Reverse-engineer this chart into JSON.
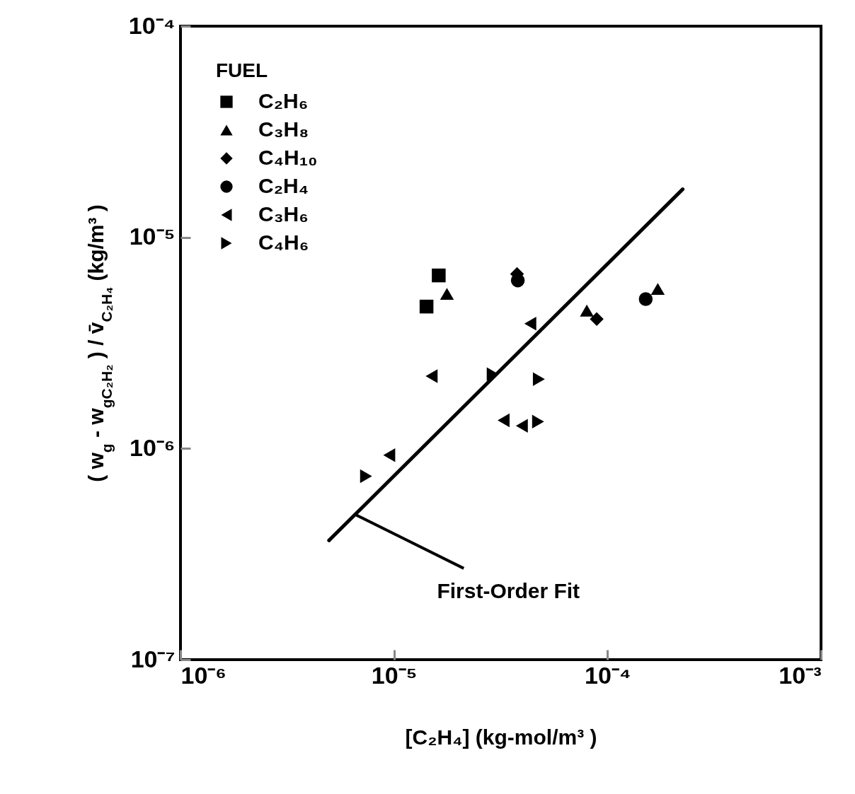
{
  "chart_data": {
    "type": "scatter",
    "xlabel": "[C₂H₄]  (kg-mol/m³ )",
    "ylabel": "( w$_{g}$ - w$_{gC₂H₂}$ ) / v̄$_{C₂H₄}$   (kg/m³ )",
    "legend_title": "FUEL",
    "legend": "top left",
    "log": "xy",
    "grid": false,
    "xlim": [
      1e-06,
      0.001
    ],
    "ylim": [
      1e-07,
      0.0001
    ],
    "xticks": [
      {
        "value": 1e-06,
        "label": "10⁻⁶"
      },
      {
        "value": 1e-05,
        "label": "10⁻⁵"
      },
      {
        "value": 0.0001,
        "label": "10⁻⁴"
      },
      {
        "value": 0.001,
        "label": "10⁻³"
      }
    ],
    "yticks": [
      {
        "value": 1e-07,
        "label": "10⁻⁷"
      },
      {
        "value": 1e-06,
        "label": "10⁻⁶"
      },
      {
        "value": 1e-05,
        "label": "10⁻⁵"
      },
      {
        "value": 0.0001,
        "label": "10⁻⁴"
      }
    ],
    "series": [
      {
        "name": "C₂H₆",
        "color": "#000000",
        "marker": "square",
        "x": [
          1.62e-05,
          1.42e-05
        ],
        "values": [
          6.6e-06,
          4.7e-06
        ]
      },
      {
        "name": "C₃H₈",
        "color": "#000000",
        "marker": "triangle",
        "x": [
          1.77e-05,
          8e-05,
          0.000172
        ],
        "values": [
          5.4e-06,
          4.5e-06,
          5.7e-06
        ]
      },
      {
        "name": "C₄H₁₀",
        "color": "#000000",
        "marker": "diamond",
        "x": [
          3.77e-05,
          8.9e-05
        ],
        "values": [
          6.7e-06,
          4.1e-06
        ]
      },
      {
        "name": "C₂H₄",
        "color": "#000000",
        "marker": "circle",
        "x": [
          3.8e-05,
          0.000151
        ],
        "values": [
          6.25e-06,
          5.1e-06
        ]
      },
      {
        "name": "C₃H₆",
        "color": "#000000",
        "marker": "triangle-left",
        "x": [
          4.35e-05,
          1.5e-05,
          3.26e-05,
          3.97e-05,
          9.5e-06
        ],
        "values": [
          3.9e-06,
          2.2e-06,
          1.36e-06,
          1.28e-06,
          9.3e-07
        ]
      },
      {
        "name": "C₄H₆",
        "color": "#000000",
        "marker": "triangle-right",
        "x": [
          7.4e-06,
          2.9e-05,
          4.77e-05,
          4.73e-05
        ],
        "values": [
          7.4e-07,
          2.25e-06,
          2.13e-06,
          1.34e-06
        ]
      },
      {
        "type": "line",
        "color": "#000000",
        "line_style": "solid",
        "marker": "none",
        "x": [
          4.96e-06,
          0.000225
        ],
        "values": [
          3.67e-07,
          1.69e-05
        ]
      }
    ],
    "annotations": [
      {
        "text": "First-Order Fit",
        "x": 6.5e-06,
        "y": 4.9e-07
      }
    ]
  }
}
